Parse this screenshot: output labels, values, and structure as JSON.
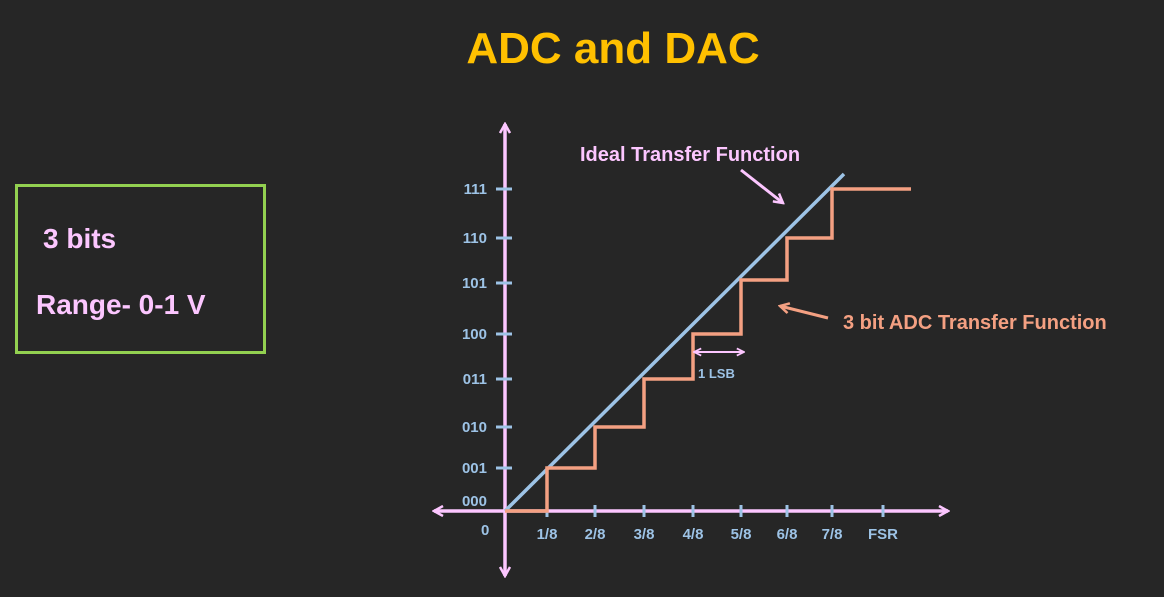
{
  "title": "ADC and DAC",
  "spec_box": {
    "bits": "3 bits",
    "range": "Range- 0-1 V"
  },
  "diagram": {
    "x_tick_labels": [
      "1/8",
      "2/8",
      "3/8",
      "4/8",
      "5/8",
      "6/8",
      "7/8",
      "FSR"
    ],
    "origin_label": "0",
    "y_tick_labels": [
      "000",
      "001",
      "010",
      "011",
      "100",
      "101",
      "110",
      "111"
    ],
    "ideal_label": "Ideal Transfer Function",
    "adc_label": "3 bit ADC Transfer Function",
    "lsb_label": "1 LSB"
  },
  "colors": {
    "background": "#262626",
    "title": "#ffc000",
    "box_border": "#92d050",
    "pink": "#fcc6ff",
    "blue": "#9dc3e6",
    "salmon": "#f4a082"
  }
}
